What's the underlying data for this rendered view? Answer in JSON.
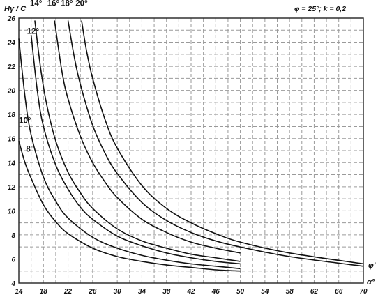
{
  "chart_data": {
    "type": "line",
    "title": "",
    "ylabel": "Hγ / C",
    "xlabel": "α°",
    "x_curve_label": "φ'",
    "annotation": "φ = 25°;  k = 0,2",
    "xlim": [
      14,
      70
    ],
    "ylim": [
      4,
      26
    ],
    "xticks": [
      14,
      18,
      22,
      26,
      30,
      34,
      38,
      42,
      46,
      50,
      54,
      58,
      62,
      66,
      70
    ],
    "yticks": [
      4,
      6,
      8,
      10,
      12,
      14,
      16,
      18,
      20,
      22,
      24,
      26
    ],
    "grid": true,
    "series": [
      {
        "name": "8°",
        "label_at": [
          15.8,
          14.9
        ],
        "x": [
          14,
          15,
          16,
          18,
          20,
          22,
          26,
          30,
          34,
          38,
          42,
          46,
          50
        ],
        "y": [
          15.8,
          14.0,
          12.7,
          10.5,
          9.1,
          8.1,
          6.9,
          6.2,
          5.8,
          5.5,
          5.3,
          5.1,
          5.0
        ]
      },
      {
        "name": "10°",
        "label_at": [
          15.0,
          17.3
        ],
        "x": [
          14,
          15,
          16,
          18,
          20,
          22,
          26,
          30,
          34,
          38,
          42,
          46,
          50
        ],
        "y": [
          24.3,
          19.5,
          16.3,
          12.8,
          10.8,
          9.4,
          7.8,
          6.9,
          6.3,
          5.9,
          5.6,
          5.4,
          5.2
        ]
      },
      {
        "name": "12°",
        "label_at": [
          16.3,
          24.7
        ],
        "x": [
          16,
          17,
          18,
          20,
          22,
          24,
          26,
          30,
          34,
          38,
          42,
          46,
          50
        ],
        "y": [
          24.6,
          20.0,
          17.0,
          13.8,
          11.8,
          10.3,
          9.3,
          7.9,
          7.1,
          6.5,
          6.1,
          5.8,
          5.6
        ]
      },
      {
        "name": "14°",
        "label_at": [
          16.8,
          27.0
        ],
        "x": [
          16.6,
          17.5,
          18.5,
          20,
          22,
          24,
          26,
          30,
          34,
          38,
          42,
          46,
          50
        ],
        "y": [
          25.8,
          22.0,
          18.9,
          15.8,
          13.2,
          11.5,
          10.2,
          8.5,
          7.5,
          6.9,
          6.4,
          6.1,
          5.8
        ]
      },
      {
        "name": "16°",
        "label_at": [
          19.6,
          27.0
        ],
        "x": [
          19.8,
          21,
          22,
          24,
          26,
          28,
          30,
          34,
          38,
          42,
          46,
          50
        ],
        "y": [
          25.8,
          21.6,
          19.3,
          16.2,
          14.0,
          12.4,
          11.1,
          9.3,
          8.2,
          7.4,
          6.9,
          6.5
        ]
      },
      {
        "name": "18°",
        "label_at": [
          21.8,
          27.0
        ],
        "x": [
          22,
          23,
          24,
          26,
          28,
          30,
          34,
          38,
          42,
          46,
          50,
          58,
          70
        ],
        "y": [
          25.8,
          22.8,
          20.5,
          17.1,
          14.8,
          13.1,
          10.7,
          9.2,
          8.2,
          7.5,
          7.0,
          6.2,
          5.4
        ]
      },
      {
        "name": "20°",
        "label_at": [
          24.2,
          27.0
        ],
        "x": [
          24.2,
          25,
          26,
          28,
          30,
          34,
          38,
          42,
          46,
          50,
          58,
          70
        ],
        "y": [
          25.8,
          23.3,
          21.0,
          17.6,
          15.2,
          12.1,
          10.2,
          9.0,
          8.1,
          7.4,
          6.5,
          5.6
        ]
      }
    ]
  }
}
